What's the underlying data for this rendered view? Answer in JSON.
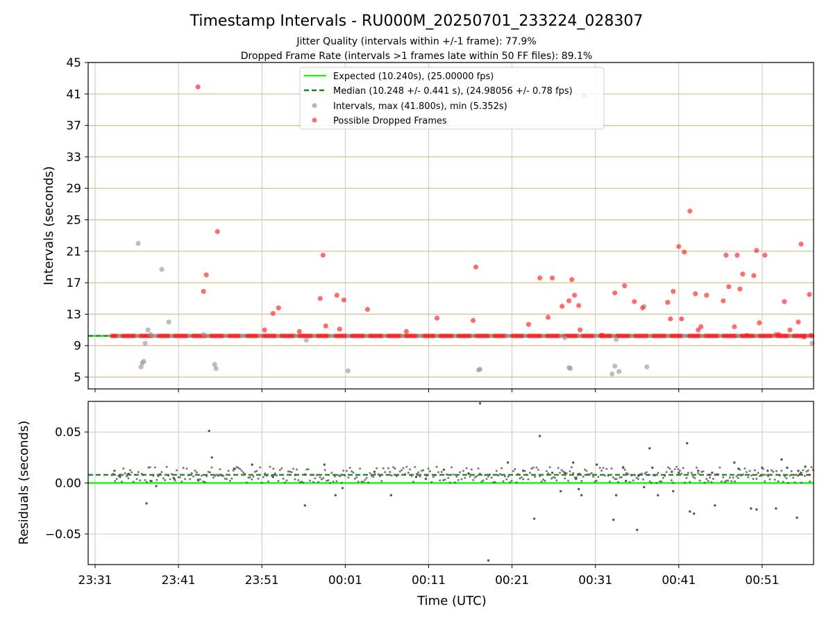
{
  "title": "Timestamp Intervals - RU000M_20250701_233224_028307",
  "subtitle1": "Jitter Quality (intervals within +/-1 frame): 77.9%",
  "subtitle2": "Dropped Frame Rate (intervals >1 frames late within 50 FF files): 89.1%",
  "colors": {
    "expected": "#22ee22",
    "median": "#118811",
    "intervals": "#999999",
    "dropped": "#ff2020",
    "hgrid_top": "#d2bf86",
    "grid": "#c8c8c8",
    "residual": "#555555"
  },
  "chart_data": [
    {
      "type": "scatter",
      "ylabel": "Intervals (seconds)",
      "ylim": [
        3.5,
        45
      ],
      "yticks": [
        5,
        9,
        13,
        17,
        21,
        25,
        29,
        33,
        37,
        41,
        45
      ],
      "ytick_labels": [
        "5",
        "9",
        "13",
        "17",
        "21",
        "25",
        "29",
        "33",
        "37",
        "41",
        "45"
      ],
      "xlim": [
        "23:30:10",
        "00:57:10"
      ],
      "legend_position": "upper center",
      "legend": [
        {
          "key": "expected",
          "label": "Expected (10.240s), (25.00000 fps)",
          "style": "solid-line"
        },
        {
          "key": "median",
          "label": "Median (10.248 +/- 0.441 s), (24.98056 +/- 0.78 fps)",
          "style": "dashed-line"
        },
        {
          "key": "intervals",
          "label": "Intervals, max (41.800s), min (5.352s)",
          "style": "marker"
        },
        {
          "key": "dropped",
          "label": "Possible Dropped Frames",
          "style": "marker"
        }
      ],
      "expected_value": 10.24,
      "median_value": 10.248,
      "baseline_range": [
        "23:33:00",
        "00:57:10"
      ],
      "baseline_value": 10.24,
      "series": [
        {
          "key": "intervals",
          "x": [
            "23:36:10",
            "23:36:30",
            "23:36:40",
            "23:36:50",
            "23:37:00",
            "23:37:20",
            "23:37:40",
            "23:39:00",
            "23:39:50",
            "23:44:00",
            "23:45:20",
            "23:45:30",
            "23:56:20",
            "00:01:20",
            "00:17:00",
            "00:17:10",
            "00:27:20",
            "00:27:50",
            "00:28:00",
            "00:33:00",
            "00:33:20",
            "00:33:30",
            "00:33:50",
            "00:36:50",
            "00:37:10",
            "00:57:00"
          ],
          "y": [
            22.0,
            6.3,
            6.8,
            7.0,
            9.3,
            11.0,
            10.4,
            18.7,
            12.0,
            10.4,
            6.6,
            6.1,
            9.7,
            5.8,
            5.9,
            6.0,
            10.0,
            6.2,
            6.1,
            5.4,
            6.4,
            9.8,
            5.7,
            14.0,
            6.3,
            9.3
          ]
        },
        {
          "key": "dropped",
          "x": [
            "23:43:20",
            "23:44:00",
            "23:44:20",
            "23:45:40",
            "23:51:20",
            "23:52:20",
            "23:53:00",
            "23:55:30",
            "23:58:00",
            "23:58:20",
            "23:58:40",
            "00:00:00",
            "00:00:20",
            "00:00:50",
            "00:03:40",
            "00:08:20",
            "00:12:00",
            "00:16:20",
            "00:16:40",
            "00:23:00",
            "00:24:20",
            "00:25:20",
            "00:25:50",
            "00:27:00",
            "00:27:50",
            "00:28:10",
            "00:28:30",
            "00:29:00",
            "00:29:10",
            "00:29:40",
            "00:31:40",
            "00:31:50",
            "00:33:20",
            "00:34:30",
            "00:35:40",
            "00:36:40",
            "00:39:40",
            "00:40:00",
            "00:40:20",
            "00:41:00",
            "00:41:20",
            "00:41:40",
            "00:42:20",
            "00:43:00",
            "00:43:20",
            "00:43:40",
            "00:44:20",
            "00:46:20",
            "00:46:40",
            "00:47:00",
            "00:47:40",
            "00:48:00",
            "00:48:20",
            "00:48:40",
            "00:49:10",
            "00:50:00",
            "00:50:20",
            "00:50:40",
            "00:51:20",
            "00:52:40",
            "00:53:00",
            "00:53:40",
            "00:54:20",
            "00:55:20",
            "00:55:40",
            "00:56:00",
            "00:56:40",
            "00:56:50"
          ],
          "y": [
            41.9,
            15.9,
            18.0,
            23.5,
            11.0,
            13.1,
            13.8,
            10.8,
            15.0,
            20.5,
            11.5,
            15.4,
            11.1,
            14.8,
            13.6,
            10.8,
            12.5,
            12.2,
            19.0,
            11.7,
            17.6,
            12.6,
            17.6,
            14.0,
            14.7,
            17.4,
            15.4,
            14.1,
            11.0,
            40.8,
            10.3,
            10.3,
            15.7,
            16.6,
            14.6,
            13.8,
            14.5,
            12.4,
            15.9,
            21.6,
            12.4,
            20.9,
            26.1,
            15.6,
            11.0,
            11.4,
            15.4,
            14.7,
            20.5,
            16.5,
            11.4,
            20.5,
            16.2,
            18.1,
            10.3,
            17.9,
            21.1,
            11.9,
            20.5,
            10.4,
            10.4,
            14.6,
            11.0,
            12.0,
            21.9,
            10.1,
            15.5,
            10.3
          ]
        }
      ]
    },
    {
      "type": "scatter",
      "xlabel": "Time (UTC)",
      "ylabel": "Residuals (seconds)",
      "ylim": [
        -0.08,
        0.08
      ],
      "yticks": [
        -0.05,
        0.0,
        0.05
      ],
      "ytick_labels": [
        "−0.05",
        "0.00",
        "0.05"
      ],
      "xlim": [
        "23:30:10",
        "00:57:10"
      ],
      "xticks": [
        "23:31",
        "23:41",
        "23:51",
        "00:01",
        "00:11",
        "00:21",
        "00:31",
        "00:41",
        "00:51"
      ],
      "zero_value": 0.0,
      "median_value": 0.008,
      "series": [
        {
          "key": "residual",
          "x": [
            "23:33:20",
            "23:34:00",
            "23:35:00",
            "23:37:10",
            "23:37:40",
            "23:38:20",
            "23:40:30",
            "23:43:20",
            "23:44:40",
            "23:45:00",
            "23:47:40",
            "23:49:50",
            "23:52:20",
            "23:55:00",
            "23:56:10",
            "23:58:30",
            "23:59:50",
            "00:00:40",
            "00:04:30",
            "00:06:30",
            "00:09:30",
            "00:10:40",
            "00:12:50",
            "00:15:50",
            "00:17:10",
            "00:18:10",
            "00:20:30",
            "00:22:20",
            "00:23:40",
            "00:24:20",
            "00:25:50",
            "00:26:50",
            "00:27:20",
            "00:28:20",
            "00:28:40",
            "00:29:00",
            "00:29:20",
            "00:31:10",
            "00:33:10",
            "00:33:30",
            "00:34:20",
            "00:34:40",
            "00:36:00",
            "00:36:10",
            "00:36:50",
            "00:37:30",
            "00:37:50",
            "00:38:30",
            "00:40:10",
            "00:40:20",
            "00:41:00",
            "00:42:00",
            "00:42:20",
            "00:42:50",
            "00:43:20",
            "00:44:40",
            "00:45:00",
            "00:45:20",
            "00:47:40",
            "00:48:10",
            "00:49:40",
            "00:50:20",
            "00:51:00",
            "00:51:40",
            "00:52:40",
            "00:53:20",
            "00:54:00",
            "00:55:10",
            "00:55:20",
            "00:55:40",
            "00:56:10",
            "00:56:40"
          ],
          "y": [
            0.012,
            0.006,
            0.009,
            -0.02,
            0.002,
            -0.003,
            0.004,
            0.003,
            0.051,
            0.025,
            0.014,
            0.018,
            0.006,
            0.008,
            -0.022,
            0.018,
            -0.012,
            -0.005,
            0.011,
            -0.012,
            0.006,
            0.004,
            0.013,
            0.009,
            0.078,
            -0.076,
            0.02,
            0.012,
            -0.035,
            0.046,
            0.01,
            -0.008,
            0.01,
            0.02,
            0.004,
            -0.006,
            -0.012,
            0.018,
            -0.036,
            -0.012,
            0.015,
            0.002,
            -0.046,
            0.007,
            -0.004,
            0.034,
            0.015,
            -0.012,
            0.011,
            -0.008,
            0.01,
            0.039,
            -0.028,
            -0.03,
            0.012,
            0.008,
            0.01,
            -0.022,
            0.02,
            0.014,
            -0.025,
            -0.026,
            0.015,
            0.012,
            -0.025,
            0.023,
            0.015,
            -0.034,
            0.012,
            0.01,
            0.016,
            0.008
          ]
        }
      ]
    }
  ]
}
